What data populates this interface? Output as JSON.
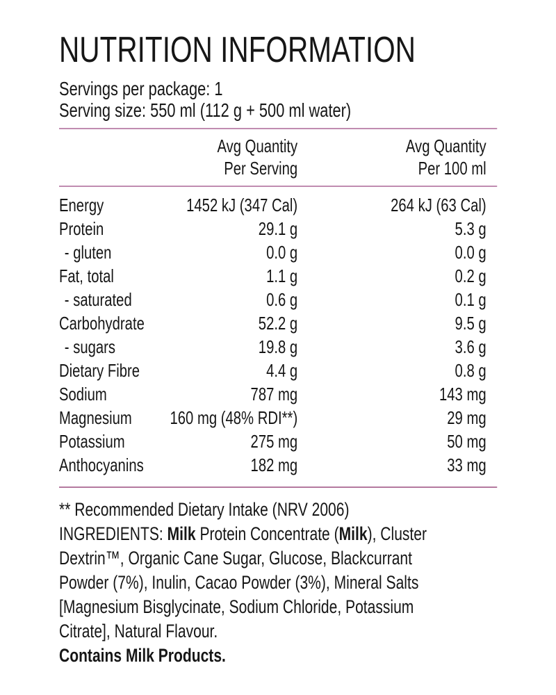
{
  "title": "NUTRITION INFORMATION",
  "servings_line": "Servings per package: 1",
  "serving_size_line": "Serving size: 550 ml (112 g + 500 ml water)",
  "columns": [
    {
      "line1": "Avg Quantity",
      "line2": "Per Serving"
    },
    {
      "line1": "Avg Quantity",
      "line2": "Per 100 ml"
    }
  ],
  "rows": [
    {
      "label": "Energy",
      "per_serving": "1452 kJ (347 Cal)",
      "per_100ml": "264 kJ (63 Cal)"
    },
    {
      "label": "Protein",
      "per_serving": "29.1 g",
      "per_100ml": "5.3 g"
    },
    {
      "label": "- gluten",
      "per_serving": "0.0 g",
      "per_100ml": "0.0 g",
      "sub": true
    },
    {
      "label": "Fat, total",
      "per_serving": "1.1 g",
      "per_100ml": "0.2 g"
    },
    {
      "label": "- saturated",
      "per_serving": "0.6 g",
      "per_100ml": "0.1 g",
      "sub": true
    },
    {
      "label": "Carbohydrate",
      "per_serving": "52.2 g",
      "per_100ml": "9.5 g"
    },
    {
      "label": "- sugars",
      "per_serving": "19.8 g",
      "per_100ml": "3.6 g",
      "sub": true
    },
    {
      "label": "Dietary Fibre",
      "per_serving": "4.4 g",
      "per_100ml": "0.8 g"
    },
    {
      "label": "Sodium",
      "per_serving": "787 mg",
      "per_100ml": "143 mg"
    },
    {
      "label": "Magnesium",
      "per_serving": "160 mg (48% RDI**)",
      "per_100ml": "29 mg"
    },
    {
      "label": "Potassium",
      "per_serving": "275 mg",
      "per_100ml": "50 mg"
    },
    {
      "label": "Anthocyanins",
      "per_serving": "182 mg",
      "per_100ml": "33 mg"
    }
  ],
  "footnote": "** Recommended Dietary Intake (NRV 2006)",
  "ingredients_lines": [
    [
      {
        "text": "INGREDIENTS: "
      },
      {
        "text": "Milk",
        "bold": true
      },
      {
        "text": " Protein Concentrate ("
      },
      {
        "text": "Milk",
        "bold": true
      },
      {
        "text": "), Cluster"
      }
    ],
    [
      {
        "text": "Dextrin™, Organic Cane Sugar, Glucose, Blackcurrant"
      }
    ],
    [
      {
        "text": "Powder (7%), Inulin, Cacao Powder (3%), Mineral Salts"
      }
    ],
    [
      {
        "text": "[Magnesium Bisglycinate, Sodium Chloride, Potassium"
      }
    ],
    [
      {
        "text": "Citrate], Natural Flavour."
      }
    ]
  ],
  "contains_line": "Contains Milk Products.",
  "colors": {
    "text": "#161616",
    "divider": "#c08cb0",
    "divider_bottom": "#b4799e",
    "background": "#ffffff"
  }
}
